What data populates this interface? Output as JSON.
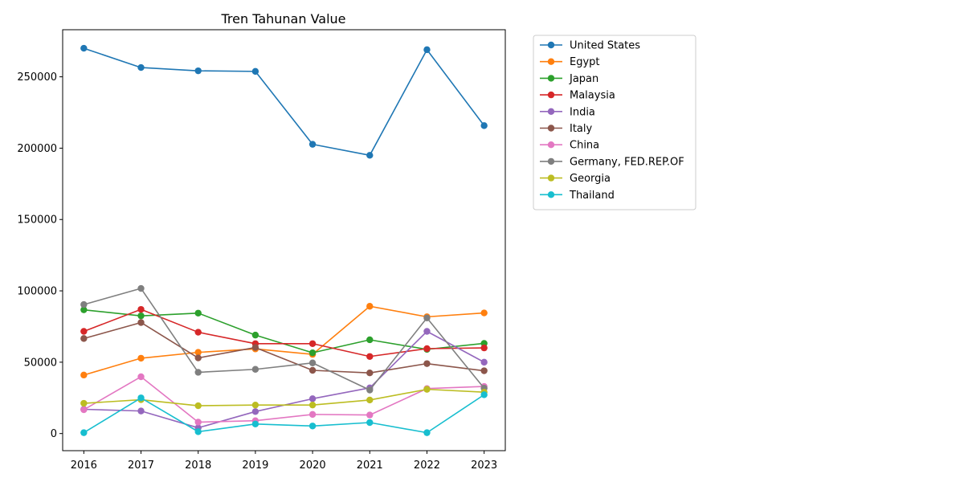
{
  "chart_data": {
    "type": "line",
    "title": "Tren Tahunan Value",
    "xlabel": "",
    "ylabel": "",
    "x": [
      "2016",
      "2017",
      "2018",
      "2019",
      "2020",
      "2021",
      "2022",
      "2023"
    ],
    "xlim": [
      2015.63,
      2023.37
    ],
    "ylim": [
      -12000,
      283000
    ],
    "yticks": [
      0,
      50000,
      100000,
      150000,
      200000,
      250000
    ],
    "grid": false,
    "legend_position": "outside-right",
    "series": [
      {
        "name": "United States",
        "color": "#1f77b4",
        "values": [
          270000,
          256500,
          254200,
          253800,
          202700,
          195000,
          269000,
          215800
        ]
      },
      {
        "name": "Egypt",
        "color": "#ff7f0e",
        "values": [
          41000,
          52800,
          56900,
          59300,
          55500,
          89200,
          81800,
          84500
        ]
      },
      {
        "name": "Japan",
        "color": "#2ca02c",
        "values": [
          86700,
          82500,
          84400,
          69000,
          56600,
          65700,
          59000,
          63200
        ]
      },
      {
        "name": "Malaysia",
        "color": "#d62728",
        "values": [
          71600,
          87000,
          71000,
          63000,
          63000,
          54000,
          59500,
          60000
        ]
      },
      {
        "name": "India",
        "color": "#9467bd",
        "values": [
          17000,
          15800,
          4000,
          15400,
          24400,
          32000,
          71600,
          50000
        ]
      },
      {
        "name": "Italy",
        "color": "#8c564b",
        "values": [
          66600,
          77800,
          53000,
          60300,
          44300,
          42500,
          49000,
          44000
        ]
      },
      {
        "name": "China",
        "color": "#e377c2",
        "values": [
          16700,
          39800,
          8000,
          9000,
          13400,
          13000,
          31500,
          33000
        ]
      },
      {
        "name": "Germany, FED.REP.OF",
        "color": "#7f7f7f",
        "values": [
          90400,
          101700,
          42900,
          45000,
          49500,
          30500,
          81000,
          31800
        ]
      },
      {
        "name": "Georgia",
        "color": "#bcbd22",
        "values": [
          21200,
          23700,
          19500,
          20000,
          20000,
          23500,
          31000,
          29000
        ]
      },
      {
        "name": "Thailand",
        "color": "#17becf",
        "values": [
          600,
          25000,
          1300,
          6700,
          5300,
          7700,
          600,
          27200
        ]
      }
    ]
  }
}
